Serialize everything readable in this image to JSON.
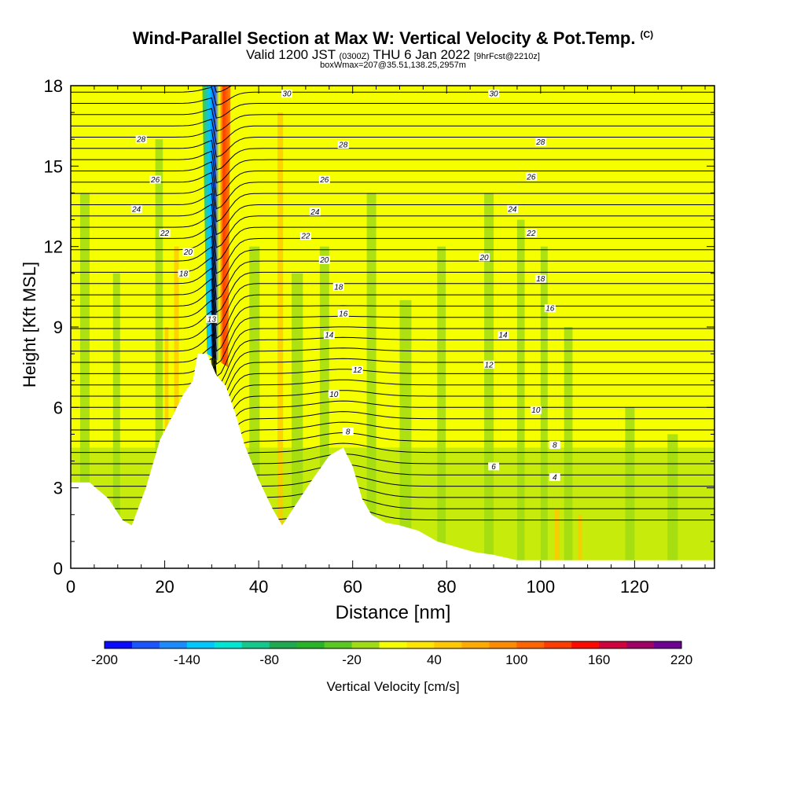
{
  "title": {
    "main": "Wind-Parallel Section at Max W: Vertical Velocity & Pot.Temp.",
    "copyright": "(C)",
    "valid_prefix": "Valid 1200 JST",
    "valid_utc": "(0300Z)",
    "valid_date": "THU 6 Jan 2022",
    "forecast_info": "[9hrFcst@2210z]",
    "box_info": "boxWmax=207@35.51,138.25,2957m"
  },
  "chart_data": {
    "type": "heatmap",
    "xlabel": "Distance [nm]",
    "ylabel": "Height [Kft MSL]",
    "xlim": [
      0,
      137
    ],
    "ylim": [
      0,
      18
    ],
    "xticks": [
      0,
      20,
      40,
      60,
      80,
      100,
      120
    ],
    "yticks": [
      0,
      3,
      6,
      9,
      12,
      15,
      18
    ],
    "colorbar": {
      "title": "Vertical Velocity [cm/s]",
      "levels": [
        -200,
        -180,
        -160,
        -140,
        -120,
        -100,
        -80,
        -60,
        -40,
        -20,
        0,
        20,
        40,
        60,
        80,
        100,
        120,
        140,
        160,
        180,
        200,
        220
      ],
      "tick_labels": [
        "-200",
        "-140",
        "-80",
        "-20",
        "40",
        "100",
        "160",
        "220"
      ],
      "colors": [
        "#0a0aff",
        "#1a55ff",
        "#1a8cff",
        "#00c8ff",
        "#00e6d2",
        "#14c88c",
        "#1eaa50",
        "#28b428",
        "#5ac81e",
        "#a0dc14",
        "#f5ff00",
        "#ffe600",
        "#ffc800",
        "#ffaa00",
        "#ff8c00",
        "#ff6400",
        "#ff3c00",
        "#ff0a00",
        "#d2003c",
        "#a00064",
        "#6e0096"
      ]
    },
    "theta_contour_labels": [
      {
        "text": "30",
        "x": 46,
        "y": 17.7
      },
      {
        "text": "30",
        "x": 90,
        "y": 17.7
      },
      {
        "text": "28",
        "x": 15,
        "y": 16.0
      },
      {
        "text": "28",
        "x": 58,
        "y": 15.8
      },
      {
        "text": "28",
        "x": 100,
        "y": 15.9
      },
      {
        "text": "26",
        "x": 18,
        "y": 14.5
      },
      {
        "text": "26",
        "x": 54,
        "y": 14.5
      },
      {
        "text": "26",
        "x": 98,
        "y": 14.6
      },
      {
        "text": "24",
        "x": 14,
        "y": 13.4
      },
      {
        "text": "24",
        "x": 52,
        "y": 13.3
      },
      {
        "text": "24",
        "x": 94,
        "y": 13.4
      },
      {
        "text": "22",
        "x": 20,
        "y": 12.5
      },
      {
        "text": "22",
        "x": 50,
        "y": 12.4
      },
      {
        "text": "22",
        "x": 98,
        "y": 12.5
      },
      {
        "text": "20",
        "x": 25,
        "y": 11.8
      },
      {
        "text": "20",
        "x": 54,
        "y": 11.5
      },
      {
        "text": "20",
        "x": 88,
        "y": 11.6
      },
      {
        "text": "18",
        "x": 24,
        "y": 11.0
      },
      {
        "text": "18",
        "x": 57,
        "y": 10.5
      },
      {
        "text": "18",
        "x": 100,
        "y": 10.8
      },
      {
        "text": "16",
        "x": 58,
        "y": 9.5
      },
      {
        "text": "16",
        "x": 102,
        "y": 9.7
      },
      {
        "text": "14",
        "x": 55,
        "y": 8.7
      },
      {
        "text": "14",
        "x": 92,
        "y": 8.7
      },
      {
        "text": "13",
        "x": 30,
        "y": 9.3
      },
      {
        "text": "12",
        "x": 61,
        "y": 7.4
      },
      {
        "text": "12",
        "x": 89,
        "y": 7.6
      },
      {
        "text": "10",
        "x": 56,
        "y": 6.5
      },
      {
        "text": "10",
        "x": 99,
        "y": 5.9
      },
      {
        "text": "8",
        "x": 59,
        "y": 5.1
      },
      {
        "text": "8",
        "x": 103,
        "y": 4.6
      },
      {
        "text": "6",
        "x": 90,
        "y": 3.8
      },
      {
        "text": "4",
        "x": 103,
        "y": 3.4
      }
    ]
  }
}
